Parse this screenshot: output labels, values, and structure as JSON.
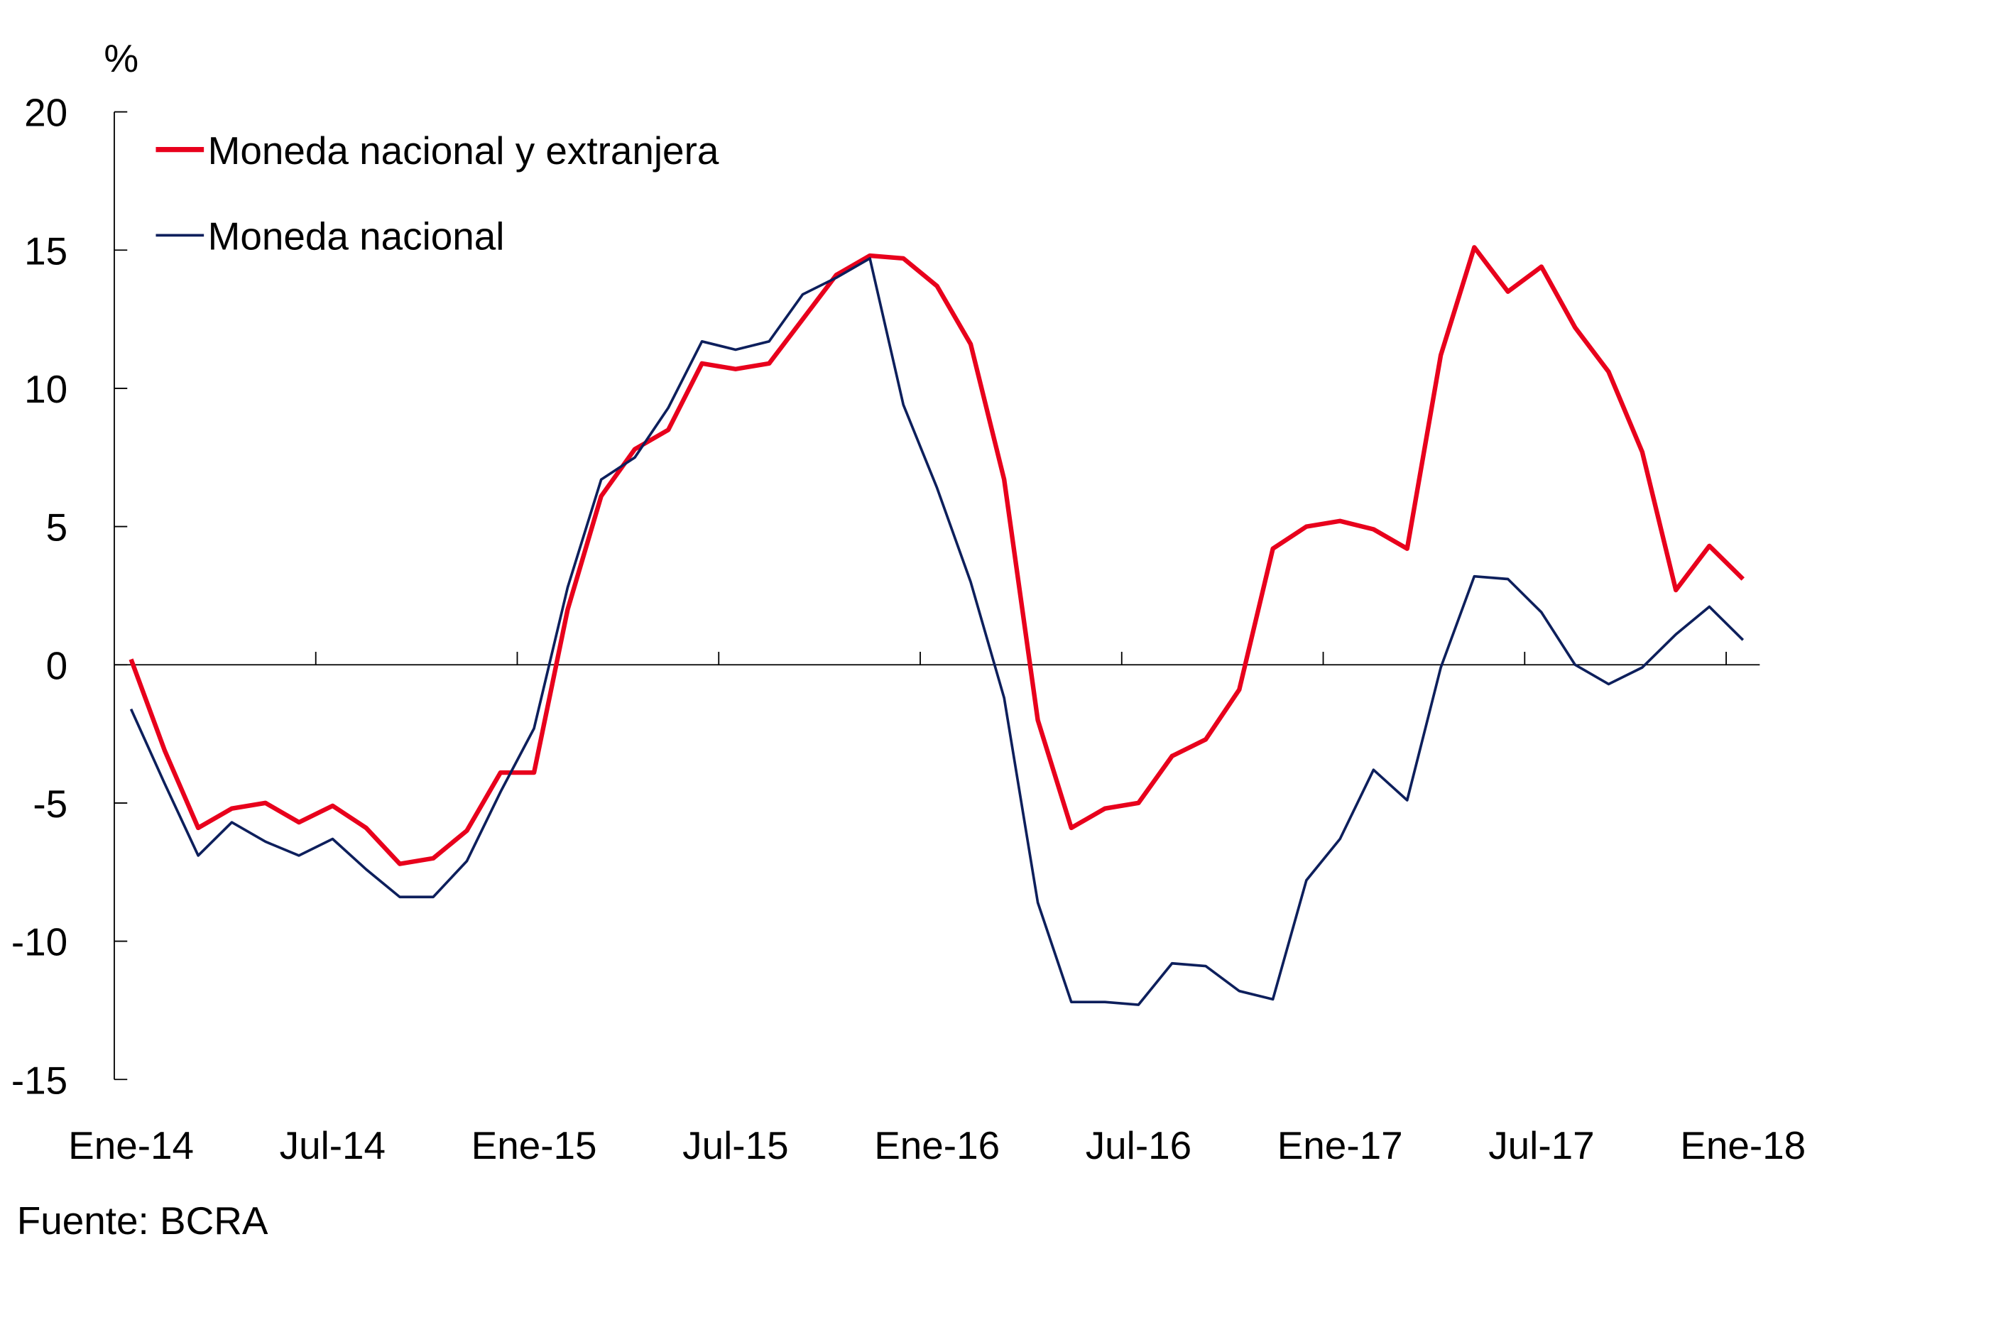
{
  "chart_data": {
    "type": "line",
    "ylabel": "%",
    "ylim": [
      -15,
      20
    ],
    "yticks": [
      20,
      15,
      10,
      5,
      0,
      -5,
      -10,
      -15
    ],
    "ytick_labels": [
      "20",
      "15",
      "10",
      "5",
      "0",
      "-5",
      "-10",
      "-15"
    ],
    "xtick_labels": [
      "Ene-14",
      "Jul-14",
      "Ene-15",
      "Jul-15",
      "Ene-16",
      "Jul-16",
      "Ene-17",
      "Jul-17",
      "Ene-18"
    ],
    "x": [
      "Ene-14",
      "Feb-14",
      "Mar-14",
      "Abr-14",
      "May-14",
      "Jun-14",
      "Jul-14",
      "Ago-14",
      "Sep-14",
      "Oct-14",
      "Nov-14",
      "Dic-14",
      "Ene-15",
      "Feb-15",
      "Mar-15",
      "Abr-15",
      "May-15",
      "Jun-15",
      "Jul-15",
      "Ago-15",
      "Sep-15",
      "Oct-15",
      "Nov-15",
      "Dic-15",
      "Ene-16",
      "Feb-16",
      "Mar-16",
      "Abr-16",
      "May-16",
      "Jun-16",
      "Jul-16",
      "Ago-16",
      "Sep-16",
      "Oct-16",
      "Nov-16",
      "Dic-16",
      "Ene-17",
      "Feb-17",
      "Mar-17",
      "Abr-17",
      "May-17",
      "Jun-17",
      "Jul-17",
      "Ago-17",
      "Sep-17",
      "Oct-17",
      "Nov-17",
      "Dic-17",
      "Ene-18"
    ],
    "grid": false,
    "legend_position": "top-left",
    "series": [
      {
        "name": "Moneda nacional y extranjera",
        "color": "#e8001c",
        "values": [
          0.2,
          -3.1,
          -5.9,
          -5.2,
          -5.0,
          -5.7,
          -5.1,
          -5.9,
          -7.2,
          -7.0,
          -6.0,
          -3.9,
          -3.9,
          2.0,
          6.1,
          7.8,
          8.5,
          10.9,
          10.7,
          10.9,
          12.5,
          14.1,
          14.8,
          14.7,
          13.7,
          11.6,
          6.7,
          -2.0,
          -5.9,
          -5.2,
          -5.0,
          -3.3,
          -2.7,
          -0.9,
          4.2,
          5.0,
          5.2,
          4.9,
          4.2,
          11.2,
          15.1,
          13.5,
          14.4,
          12.2,
          10.6,
          7.7,
          2.7,
          4.3,
          3.1
        ]
      },
      {
        "name": "Moneda nacional",
        "color": "#0d1f5c",
        "values": [
          -1.6,
          -4.3,
          -6.9,
          -5.7,
          -6.4,
          -6.9,
          -6.3,
          -7.4,
          -8.4,
          -8.4,
          -7.1,
          -4.6,
          -2.3,
          2.8,
          6.7,
          7.5,
          9.3,
          11.7,
          11.4,
          11.7,
          13.4,
          14.0,
          14.7,
          9.4,
          6.4,
          3.0,
          -1.2,
          -8.6,
          -12.2,
          -12.2,
          -12.3,
          -10.8,
          -10.9,
          -11.8,
          -12.1,
          -7.8,
          -6.3,
          -3.8,
          -4.9,
          -0.1,
          3.2,
          3.1,
          1.9,
          0.0,
          -0.7,
          -0.1,
          1.1,
          2.1,
          0.9
        ]
      }
    ]
  },
  "source": "Fuente:  BCRA"
}
